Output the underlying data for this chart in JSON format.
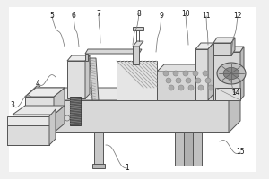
{
  "bg_color": "#f0f0f0",
  "lc": "#555555",
  "lw": 0.7,
  "leaders": [
    [
      "1",
      142,
      188,
      118,
      162
    ],
    [
      "3",
      14,
      118,
      35,
      108
    ],
    [
      "4",
      42,
      93,
      62,
      86
    ],
    [
      "5",
      58,
      18,
      72,
      52
    ],
    [
      "6",
      82,
      18,
      88,
      52
    ],
    [
      "7",
      110,
      15,
      112,
      48
    ],
    [
      "8",
      155,
      15,
      148,
      50
    ],
    [
      "9",
      180,
      18,
      174,
      58
    ],
    [
      "10",
      207,
      15,
      210,
      50
    ],
    [
      "11",
      230,
      18,
      232,
      50
    ],
    [
      "12",
      265,
      18,
      258,
      60
    ],
    [
      "14",
      263,
      103,
      255,
      90
    ],
    [
      "15",
      268,
      170,
      245,
      158
    ]
  ]
}
